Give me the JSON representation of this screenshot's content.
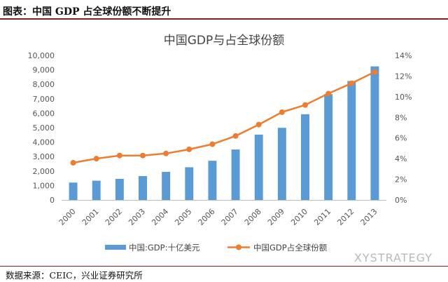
{
  "header": {
    "title": "图表：中国 GDP 占全球份额不断提升"
  },
  "footer": {
    "source": "数据来源：CEIC，兴业证券研究所",
    "watermark": "XYSTRATEGY"
  },
  "colors": {
    "bar": "#5b9bd5",
    "line": "#ed7d31",
    "rule": "#8a1e1e"
  },
  "chart_data": {
    "type": "bar+line",
    "title": "中国GDP与占全球份额",
    "categories": [
      "2000",
      "2001",
      "2002",
      "2003",
      "2004",
      "2005",
      "2006",
      "2007",
      "2008",
      "2009",
      "2010",
      "2011",
      "2012",
      "2013"
    ],
    "series": [
      {
        "name": "中国:GDP:十亿美元",
        "type": "bar",
        "axis": "left",
        "values": [
          1200,
          1330,
          1460,
          1650,
          1940,
          2260,
          2710,
          3490,
          4520,
          4990,
          5930,
          7320,
          8230,
          9240
        ]
      },
      {
        "name": "中国GDP占全球份额",
        "type": "line",
        "axis": "right",
        "values": [
          3.6,
          4.0,
          4.3,
          4.3,
          4.5,
          4.9,
          5.4,
          6.2,
          7.3,
          8.5,
          9.2,
          10.3,
          11.3,
          12.4
        ]
      }
    ],
    "y_left": {
      "min": 0,
      "max": 10000,
      "ticks": [
        "0",
        "1,000",
        "2,000",
        "3,000",
        "4,000",
        "5,000",
        "6,000",
        "7,000",
        "8,000",
        "9,000",
        "10,000"
      ]
    },
    "y_right": {
      "min": 0,
      "max": 14,
      "ticks": [
        "0%",
        "2%",
        "4%",
        "6%",
        "8%",
        "10%",
        "12%",
        "14%"
      ]
    },
    "grid": false,
    "legend": "bottom"
  }
}
